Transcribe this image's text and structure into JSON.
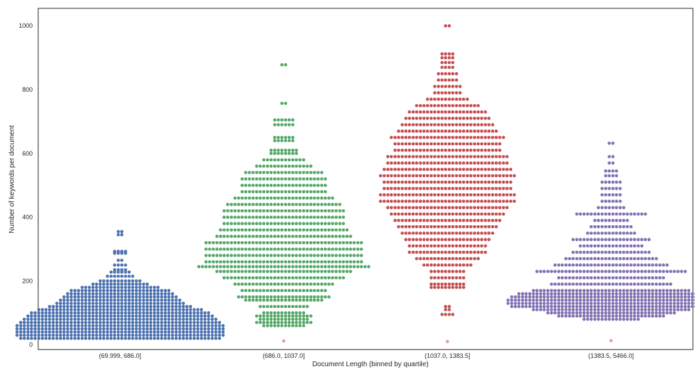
{
  "chart_data": {
    "type": "scatter",
    "subtype": "swarm",
    "title": "",
    "xlabel": "Document Length (binned by quartile)",
    "ylabel": "Number of keywords per document",
    "ylim": [
      -15,
      1055
    ],
    "yticks": [
      0,
      200,
      400,
      600,
      800,
      1000
    ],
    "grid": false,
    "categories": [
      "(69.999, 686.0]",
      "(686.0, 1037.0]",
      "(1037.0, 1383.5]",
      "(1383.5, 5466.0]"
    ],
    "colors": [
      "#4c72b0",
      "#55a868",
      "#c44e52",
      "#8172b2"
    ],
    "outlier_colors": [
      "#7b9ad0",
      "#e89a9a",
      "#e89a9a",
      "#e89a9a"
    ],
    "series": [
      {
        "category": "(69.999, 686.0]",
        "values": [
          355,
          345,
          293,
          290,
          287,
          265,
          250,
          235,
          228,
          215,
          200,
          190,
          180,
          175,
          170,
          165,
          160,
          155,
          150,
          145,
          140,
          135,
          130,
          125,
          120,
          115,
          110,
          105,
          100,
          95,
          90,
          85,
          80,
          75,
          70,
          65,
          60,
          55,
          50,
          45,
          40,
          35,
          30,
          25,
          20
        ],
        "density": [
          [
            355,
            2
          ],
          [
            345,
            2
          ],
          [
            293,
            4
          ],
          [
            287,
            4
          ],
          [
            265,
            2
          ],
          [
            250,
            4
          ],
          [
            235,
            4
          ],
          [
            228,
            6
          ],
          [
            215,
            8
          ],
          [
            200,
            12
          ],
          [
            190,
            16
          ],
          [
            180,
            22
          ],
          [
            170,
            28
          ],
          [
            160,
            30
          ],
          [
            150,
            32
          ],
          [
            140,
            34
          ],
          [
            130,
            36
          ],
          [
            120,
            40
          ],
          [
            110,
            46
          ],
          [
            100,
            50
          ],
          [
            90,
            52
          ],
          [
            80,
            54
          ],
          [
            70,
            56
          ],
          [
            60,
            58
          ],
          [
            50,
            58
          ],
          [
            40,
            58
          ],
          [
            30,
            58
          ],
          [
            20,
            56
          ]
        ],
        "outliers": []
      },
      {
        "category": "(686.0, 1037.0]",
        "values": [
          878,
          757,
          705,
          700,
          690,
          650,
          640,
          610,
          600,
          580,
          560,
          540,
          520,
          500,
          480,
          460,
          440,
          420,
          400,
          380,
          360,
          340,
          320,
          300,
          280,
          260,
          245,
          230,
          210,
          190,
          170,
          150,
          140,
          120,
          100,
          90,
          80,
          70,
          60
        ],
        "density": [
          [
            878,
            2
          ],
          [
            757,
            2
          ],
          [
            705,
            6
          ],
          [
            690,
            6
          ],
          [
            650,
            6
          ],
          [
            640,
            6
          ],
          [
            610,
            8
          ],
          [
            600,
            8
          ],
          [
            580,
            12
          ],
          [
            560,
            16
          ],
          [
            540,
            22
          ],
          [
            520,
            24
          ],
          [
            500,
            24
          ],
          [
            480,
            24
          ],
          [
            460,
            28
          ],
          [
            440,
            32
          ],
          [
            420,
            34
          ],
          [
            400,
            34
          ],
          [
            380,
            34
          ],
          [
            360,
            36
          ],
          [
            340,
            38
          ],
          [
            320,
            44
          ],
          [
            300,
            44
          ],
          [
            280,
            44
          ],
          [
            260,
            44
          ],
          [
            245,
            48
          ],
          [
            230,
            38
          ],
          [
            210,
            34
          ],
          [
            190,
            28
          ],
          [
            170,
            24
          ],
          [
            150,
            26
          ],
          [
            140,
            22
          ],
          [
            120,
            14
          ],
          [
            100,
            12
          ],
          [
            90,
            16
          ],
          [
            80,
            14
          ],
          [
            70,
            16
          ],
          [
            60,
            12
          ]
        ],
        "outliers": [
          12
        ]
      },
      {
        "category": "(1037.0, 1383.5]",
        "values": [
          1000,
          912,
          900,
          885,
          870,
          850,
          830,
          810,
          790,
          770,
          750,
          730,
          710,
          690,
          670,
          650,
          630,
          610,
          590,
          570,
          550,
          530,
          510,
          490,
          470,
          450,
          430,
          410,
          390,
          370,
          350,
          330,
          310,
          290,
          270,
          250,
          230,
          210,
          190,
          180,
          120,
          110,
          95
        ],
        "density": [
          [
            1000,
            2
          ],
          [
            912,
            4
          ],
          [
            900,
            4
          ],
          [
            885,
            4
          ],
          [
            870,
            4
          ],
          [
            850,
            6
          ],
          [
            830,
            6
          ],
          [
            810,
            8
          ],
          [
            790,
            8
          ],
          [
            770,
            12
          ],
          [
            750,
            18
          ],
          [
            730,
            22
          ],
          [
            710,
            24
          ],
          [
            690,
            26
          ],
          [
            670,
            28
          ],
          [
            650,
            32
          ],
          [
            630,
            30
          ],
          [
            610,
            30
          ],
          [
            590,
            34
          ],
          [
            570,
            34
          ],
          [
            550,
            36
          ],
          [
            530,
            38
          ],
          [
            510,
            36
          ],
          [
            490,
            36
          ],
          [
            470,
            38
          ],
          [
            450,
            38
          ],
          [
            430,
            34
          ],
          [
            410,
            32
          ],
          [
            390,
            30
          ],
          [
            370,
            28
          ],
          [
            350,
            26
          ],
          [
            330,
            24
          ],
          [
            310,
            22
          ],
          [
            290,
            22
          ],
          [
            270,
            18
          ],
          [
            250,
            14
          ],
          [
            230,
            10
          ],
          [
            210,
            10
          ],
          [
            190,
            10
          ],
          [
            180,
            10
          ],
          [
            120,
            2
          ],
          [
            110,
            2
          ],
          [
            95,
            4
          ]
        ],
        "outliers": [
          10
        ]
      },
      {
        "category": "(1383.5, 5466.0]",
        "values": [
          632,
          590,
          570,
          545,
          530,
          510,
          490,
          470,
          450,
          430,
          410,
          390,
          370,
          350,
          330,
          310,
          290,
          270,
          250,
          230,
          210,
          190,
          170,
          150,
          140,
          130,
          120,
          110,
          100,
          90,
          80
        ],
        "density": [
          [
            632,
            2
          ],
          [
            590,
            2
          ],
          [
            570,
            2
          ],
          [
            545,
            4
          ],
          [
            530,
            4
          ],
          [
            510,
            6
          ],
          [
            490,
            6
          ],
          [
            470,
            6
          ],
          [
            450,
            6
          ],
          [
            430,
            8
          ],
          [
            410,
            20
          ],
          [
            390,
            10
          ],
          [
            370,
            12
          ],
          [
            350,
            14
          ],
          [
            330,
            22
          ],
          [
            310,
            18
          ],
          [
            290,
            22
          ],
          [
            270,
            26
          ],
          [
            250,
            32
          ],
          [
            230,
            42
          ],
          [
            210,
            30
          ],
          [
            190,
            34
          ],
          [
            170,
            44
          ],
          [
            160,
            52
          ],
          [
            150,
            56
          ],
          [
            140,
            58
          ],
          [
            130,
            58
          ],
          [
            120,
            56
          ],
          [
            110,
            44
          ],
          [
            100,
            36
          ],
          [
            90,
            30
          ],
          [
            80,
            16
          ]
        ],
        "outliers": [
          13
        ]
      }
    ]
  }
}
